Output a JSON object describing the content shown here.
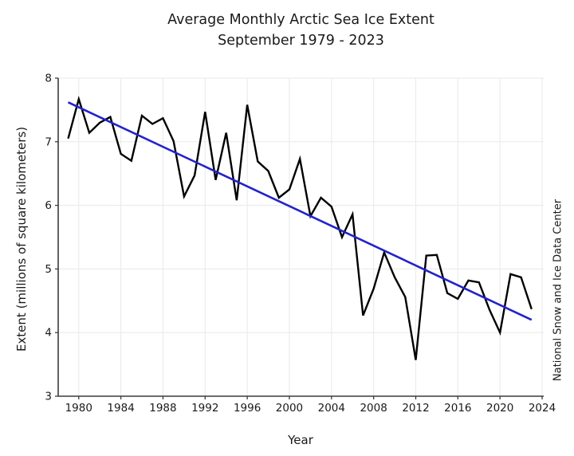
{
  "chart_data": {
    "type": "line",
    "title": "Average Monthly Arctic Sea Ice Extent",
    "subtitle": "September 1979 - 2023",
    "xlabel": "Year",
    "ylabel": "Extent (millions of square kilometers)",
    "credit": "National Snow and Ice Data Center",
    "xlim": [
      1978.05,
      2024.15
    ],
    "ylim": [
      3,
      8
    ],
    "x_ticks": [
      1980,
      1984,
      1988,
      1992,
      1996,
      2000,
      2004,
      2008,
      2012,
      2016,
      2020,
      2024
    ],
    "y_ticks": [
      3,
      4,
      5,
      6,
      7,
      8
    ],
    "grid": true,
    "legend_position": "none",
    "colors": {
      "data_line": "#000000",
      "trend_line": "#2222cc",
      "grid": "#ececec",
      "spine": "#3c3c3c",
      "text": "#1a1a1a"
    },
    "series": [
      {
        "name": "september-extent",
        "color": "#000000",
        "width": 2.4,
        "x": [
          1979,
          1980,
          1981,
          1982,
          1983,
          1984,
          1985,
          1986,
          1987,
          1988,
          1989,
          1990,
          1991,
          1992,
          1993,
          1994,
          1995,
          1996,
          1997,
          1998,
          1999,
          2000,
          2001,
          2002,
          2003,
          2004,
          2005,
          2006,
          2007,
          2008,
          2009,
          2010,
          2011,
          2012,
          2013,
          2014,
          2015,
          2016,
          2017,
          2018,
          2019,
          2020,
          2021,
          2022,
          2023
        ],
        "values": [
          7.05,
          7.67,
          7.14,
          7.3,
          7.39,
          6.81,
          6.7,
          7.41,
          7.28,
          7.37,
          7.01,
          6.14,
          6.47,
          7.47,
          6.4,
          7.14,
          6.08,
          7.58,
          6.69,
          6.54,
          6.12,
          6.25,
          6.73,
          5.83,
          6.12,
          5.98,
          5.5,
          5.86,
          4.27,
          4.69,
          5.26,
          4.87,
          4.56,
          3.57,
          5.21,
          5.22,
          4.62,
          4.53,
          4.82,
          4.79,
          4.36,
          4.0,
          4.92,
          4.87,
          4.37
        ]
      },
      {
        "name": "linear-trend",
        "color": "#2222cc",
        "width": 2.6,
        "x": [
          1979,
          2023
        ],
        "values": [
          7.62,
          4.2
        ]
      }
    ]
  }
}
